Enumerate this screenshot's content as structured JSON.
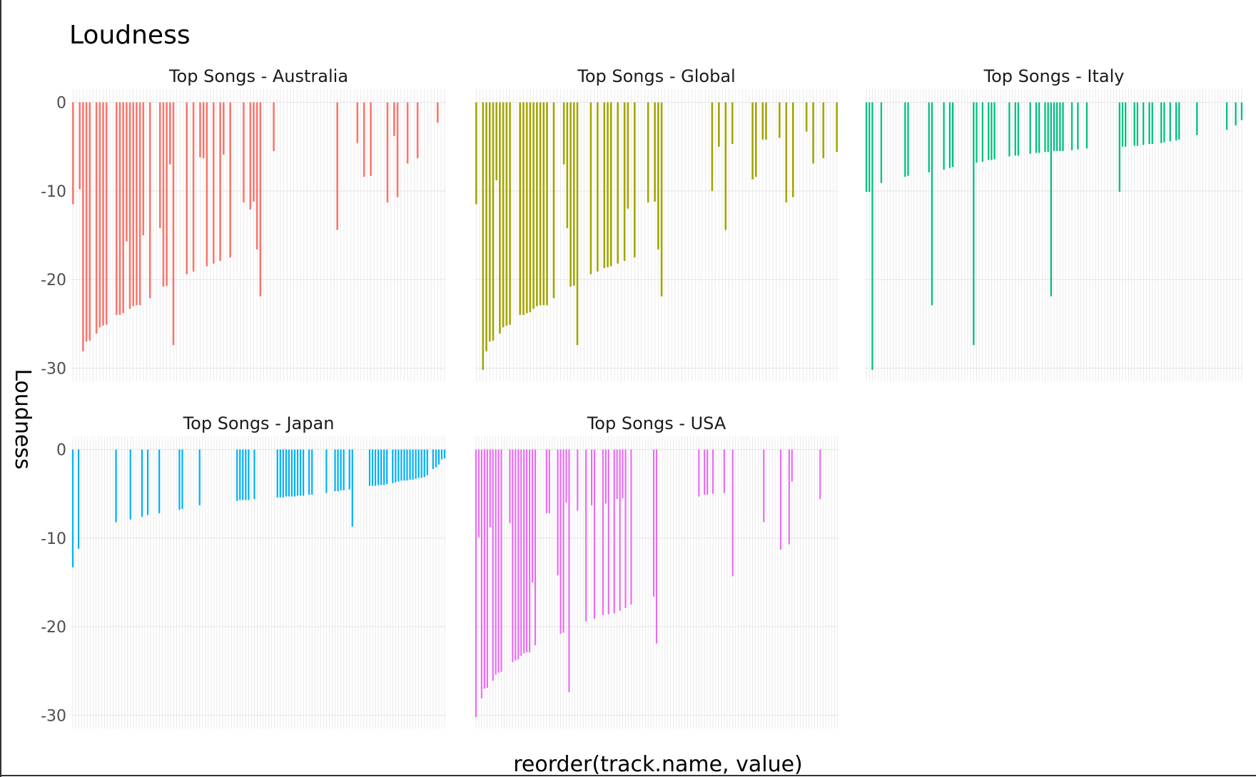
{
  "chart_data": {
    "type": "bar",
    "title": "Loudness",
    "xlabel": "reorder(track.name, value)",
    "ylabel": "Loudness",
    "ylim": [
      -31.5,
      1.5
    ],
    "yticks": [
      0,
      -10,
      -20,
      -30
    ],
    "grid": true,
    "legend": "none",
    "panels": [
      {
        "name": "Top Songs - Australia",
        "color": "#F8766D",
        "values": [
          -11.5,
          0,
          -9.8,
          -28.1,
          -27.0,
          -26.9,
          0,
          -26.1,
          -25.4,
          -25.2,
          -25.1,
          0,
          0,
          -24.0,
          -24.0,
          -23.8,
          -15.7,
          -23.3,
          -23.0,
          -22.9,
          -22.9,
          -15.0,
          0,
          -22.1,
          0,
          0,
          -14.2,
          -20.8,
          -20.7,
          -7.0,
          -27.4,
          0,
          0,
          0,
          -19.4,
          0,
          -19.1,
          0,
          -6.2,
          -6.3,
          -18.5,
          0,
          -18.2,
          0,
          -17.9,
          -5.9,
          0,
          -17.5,
          0,
          0,
          0,
          -11.3,
          0,
          -12.1,
          -11.2,
          -16.6,
          -21.9,
          0,
          0,
          0,
          -5.5,
          0,
          0,
          0,
          0,
          0,
          0,
          0,
          0,
          0,
          0,
          0,
          0,
          0,
          0,
          0,
          0,
          0,
          0,
          -14.4,
          0,
          0,
          0,
          0,
          0,
          -4.6,
          0,
          -8.4,
          0,
          -8.3,
          0,
          0,
          0,
          0,
          -11.3,
          0,
          -3.8,
          -10.7,
          0,
          0,
          -6.9,
          0,
          0,
          -6.3,
          0,
          0,
          0,
          0,
          0,
          -2.3,
          0,
          0
        ]
      },
      {
        "name": "Top Songs - Global",
        "color": "#A3A500",
        "values": [
          -11.5,
          0,
          -30.2,
          -28.1,
          -27.0,
          -26.9,
          -8.8,
          -26.1,
          -25.4,
          -25.2,
          -25.1,
          0,
          0,
          -24.0,
          -24.0,
          -23.8,
          -23.7,
          -23.3,
          -23.0,
          -22.9,
          -22.9,
          -22.9,
          0,
          -22.1,
          0,
          0,
          -7.0,
          -14.2,
          -20.8,
          -20.7,
          -27.4,
          0,
          0,
          0,
          -19.4,
          0,
          -19.1,
          0,
          -18.7,
          -18.6,
          -18.5,
          0,
          -18.2,
          0,
          -17.9,
          -12.0,
          0,
          -17.5,
          0,
          0,
          0,
          -11.3,
          0,
          -11.2,
          -16.6,
          -21.9,
          0,
          0,
          0,
          0,
          0,
          0,
          0,
          0,
          0,
          0,
          0,
          0,
          0,
          0,
          -10.0,
          0,
          -5.0,
          0,
          -14.4,
          0,
          -4.7,
          0,
          0,
          0,
          0,
          0,
          -8.7,
          -8.4,
          0,
          -4.2,
          -4.2,
          0,
          0,
          0,
          -4.0,
          0,
          -11.3,
          0,
          -10.7,
          0,
          0,
          0,
          -3.3,
          0,
          -6.9,
          0,
          0,
          -6.3,
          0,
          0,
          0,
          -5.6
        ]
      },
      {
        "name": "Top Songs - Italy",
        "color": "#00BF7D",
        "values": [
          -10.1,
          -10.1,
          -30.2,
          0,
          0,
          -9.1,
          0,
          0,
          0,
          0,
          0,
          0,
          0,
          -8.4,
          -8.3,
          0,
          0,
          0,
          0,
          0,
          0,
          -7.9,
          -22.9,
          0,
          0,
          0,
          -7.6,
          0,
          -7.4,
          -7.3,
          0,
          0,
          0,
          0,
          0,
          0,
          -27.4,
          -6.8,
          0,
          -6.7,
          0,
          -6.5,
          -6.5,
          -6.4,
          0,
          0,
          0,
          0,
          -6.1,
          0,
          -6.0,
          -6.0,
          0,
          0,
          0,
          -5.8,
          0,
          -5.7,
          -5.7,
          0,
          -5.6,
          -5.6,
          -21.9,
          -5.5,
          -5.5,
          -5.5,
          -5.5,
          0,
          0,
          -5.4,
          0,
          -5.3,
          0,
          0,
          -5.2,
          0,
          0,
          0,
          0,
          0,
          0,
          0,
          0,
          0,
          0,
          -10.1,
          -5.0,
          -5.0,
          0,
          0,
          -4.9,
          -4.9,
          0,
          -4.8,
          0,
          -4.7,
          -4.7,
          0,
          0,
          -4.6,
          -4.5,
          0,
          -4.4,
          0,
          -4.3,
          -4.2,
          0,
          0,
          0,
          0,
          0,
          -3.7,
          0,
          0,
          0,
          0,
          0,
          0,
          0,
          0,
          0,
          -3.1,
          0,
          0,
          -2.6,
          0,
          -2.0
        ]
      },
      {
        "name": "Top Songs - Japan",
        "color": "#00B0F6",
        "values": [
          -13.3,
          0,
          -11.2,
          0,
          0,
          0,
          0,
          0,
          0,
          0,
          0,
          0,
          0,
          0,
          0,
          -8.2,
          0,
          0,
          0,
          0,
          -7.9,
          0,
          0,
          0,
          -7.6,
          0,
          -7.4,
          0,
          0,
          0,
          -7.2,
          0,
          0,
          0,
          0,
          0,
          0,
          -6.8,
          -6.7,
          0,
          0,
          0,
          0,
          0,
          -6.3,
          0,
          0,
          0,
          0,
          0,
          0,
          0,
          0,
          0,
          0,
          0,
          0,
          -5.8,
          -5.7,
          -5.7,
          -5.7,
          -5.7,
          0,
          -5.6,
          0,
          0,
          0,
          0,
          0,
          0,
          0,
          -5.4,
          -5.4,
          -5.4,
          -5.3,
          -5.3,
          -5.3,
          -5.3,
          -5.2,
          -5.2,
          -5.2,
          0,
          -5.1,
          -5.1,
          0,
          0,
          0,
          0,
          -4.9,
          0,
          0,
          -4.7,
          -4.7,
          -4.6,
          -4.6,
          0,
          -4.5,
          -8.7,
          0,
          0,
          0,
          0,
          0,
          -4.1,
          -4.1,
          -4.1,
          -4.0,
          -4.0,
          -4.0,
          -3.9,
          0,
          -3.8,
          -3.7,
          -3.6,
          -3.5,
          -3.5,
          -3.5,
          -3.4,
          -3.4,
          -3.3,
          -3.2,
          -3.2,
          -3.1,
          -2.9,
          0,
          -2.2,
          -2.0,
          -1.7,
          -1.1,
          -1.0
        ]
      },
      {
        "name": "Top Songs - USA",
        "color": "#E76BF3",
        "values": [
          -30.2,
          -9.9,
          -28.1,
          -27.0,
          -26.9,
          -8.8,
          -26.1,
          -25.4,
          -25.2,
          -25.1,
          0,
          0,
          -8.3,
          -24.0,
          -23.8,
          -23.7,
          -23.3,
          -23.0,
          -22.9,
          -22.9,
          -15.0,
          -22.1,
          0,
          0,
          0,
          -7.2,
          -7.2,
          0,
          0,
          -14.2,
          -20.8,
          -20.7,
          -6.0,
          -27.4,
          0,
          0,
          -6.9,
          0,
          0,
          -19.4,
          0,
          -6.3,
          -19.1,
          0,
          0,
          -18.7,
          -6.1,
          -18.6,
          0,
          -18.5,
          -5.6,
          -18.2,
          -5.5,
          -17.9,
          0,
          -17.5,
          0,
          0,
          0,
          0,
          0,
          0,
          0,
          -16.6,
          -21.9,
          0,
          0,
          0,
          0,
          0,
          0,
          0,
          0,
          0,
          0,
          0,
          0,
          0,
          0,
          -5.3,
          0,
          -5.1,
          -5.1,
          0,
          -5.0,
          0,
          0,
          0,
          -4.9,
          0,
          0,
          -14.3,
          0,
          0,
          0,
          0,
          0,
          0,
          0,
          0,
          0,
          0,
          -8.2,
          0,
          0,
          0,
          0,
          0,
          -11.3,
          0,
          0,
          -10.7,
          -3.6,
          0,
          0,
          0,
          0,
          0,
          0,
          0,
          0,
          0,
          -5.6,
          0,
          0,
          0,
          0,
          0,
          0
        ]
      }
    ]
  }
}
